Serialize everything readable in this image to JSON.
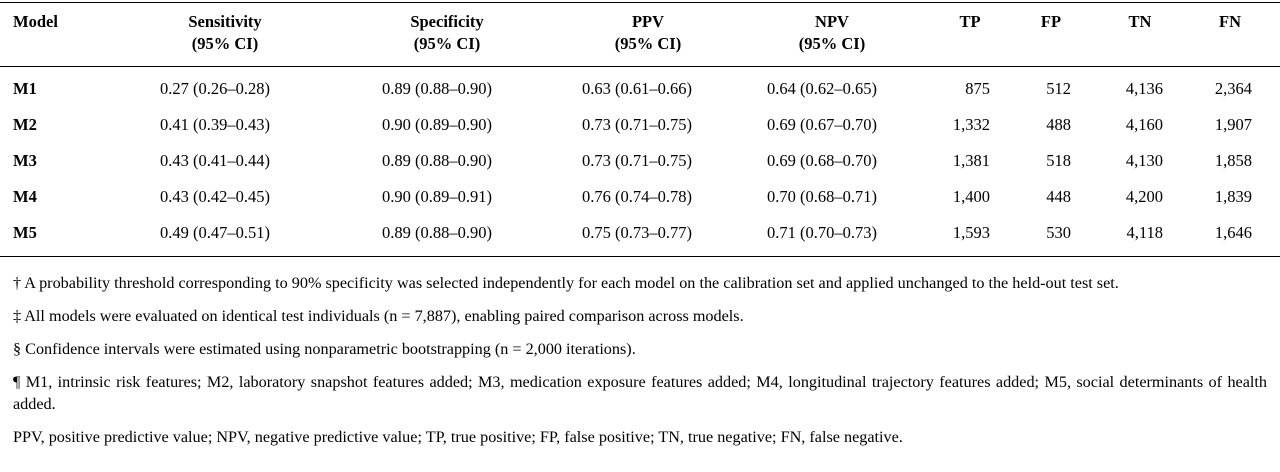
{
  "table": {
    "headers": {
      "model": "Model",
      "sensitivity": [
        "Sensitivity",
        "(95% CI)"
      ],
      "specificity": [
        "Specificity",
        "(95% CI)"
      ],
      "ppv": [
        "PPV",
        "(95% CI)"
      ],
      "npv": [
        "NPV",
        "(95% CI)"
      ],
      "tp": "TP",
      "fp": "FP",
      "tn": "TN",
      "fn": "FN"
    },
    "rows": [
      {
        "model": "M1",
        "sensitivity": "0.27 (0.26–0.28)",
        "specificity": "0.89 (0.88–0.90)",
        "ppv": "0.63 (0.61–0.66)",
        "npv": "0.64 (0.62–0.65)",
        "tp": "875",
        "fp": "512",
        "tn": "4,136",
        "fn": "2,364"
      },
      {
        "model": "M2",
        "sensitivity": "0.41 (0.39–0.43)",
        "specificity": "0.90 (0.89–0.90)",
        "ppv": "0.73 (0.71–0.75)",
        "npv": "0.69 (0.67–0.70)",
        "tp": "1,332",
        "fp": "488",
        "tn": "4,160",
        "fn": "1,907"
      },
      {
        "model": "M3",
        "sensitivity": "0.43 (0.41–0.44)",
        "specificity": "0.89 (0.88–0.90)",
        "ppv": "0.73 (0.71–0.75)",
        "npv": "0.69 (0.68–0.70)",
        "tp": "1,381",
        "fp": "518",
        "tn": "4,130",
        "fn": "1,858"
      },
      {
        "model": "M4",
        "sensitivity": "0.43 (0.42–0.45)",
        "specificity": "0.90 (0.89–0.91)",
        "ppv": "0.76 (0.74–0.78)",
        "npv": "0.70 (0.68–0.71)",
        "tp": "1,400",
        "fp": "448",
        "tn": "4,200",
        "fn": "1,839"
      },
      {
        "model": "M5",
        "sensitivity": "0.49 (0.47–0.51)",
        "specificity": "0.89 (0.88–0.90)",
        "ppv": "0.75 (0.73–0.77)",
        "npv": "0.71 (0.70–0.73)",
        "tp": "1,593",
        "fp": "530",
        "tn": "4,118",
        "fn": "1,646"
      }
    ]
  },
  "footnotes": [
    "† A probability threshold corresponding to 90% specificity was selected independently for each model on the calibration set and applied unchanged to the held-out test set.",
    "‡ All models were evaluated on identical test individuals (n = 7,887), enabling paired comparison across models.",
    "§ Confidence intervals were estimated using nonparametric bootstrapping (n = 2,000 iterations).",
    "¶ M1, intrinsic risk features; M2, laboratory snapshot features added; M3, medication exposure features added; M4, longitudinal trajectory features added; M5, social determinants of health added.",
    "PPV, positive predictive value; NPV, negative predictive value; TP, true positive; FP, false positive; TN, true negative; FN, false negative."
  ]
}
